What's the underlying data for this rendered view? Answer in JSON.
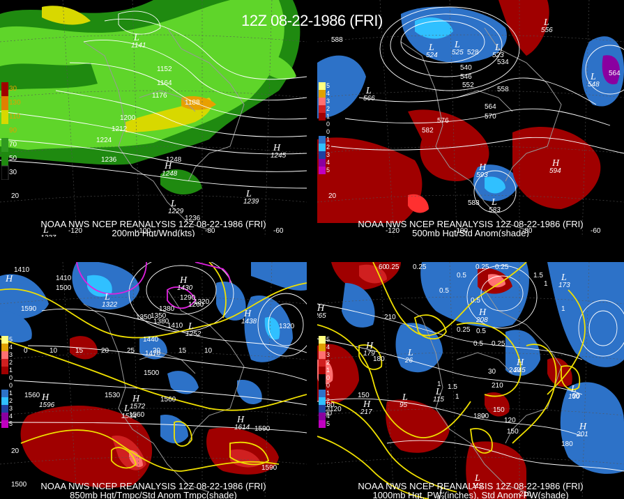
{
  "title": "12Z 08-22-1986 (FRI)",
  "colors": {
    "wind_green_light": "#5fd52a",
    "wind_green_dark": "#1f8a10",
    "wind_yellow": "#d8d800",
    "anom_red": "#a00000",
    "anom_red_light": "#ff3030",
    "anom_blue": "#2d72c8",
    "anom_cyan": "#30c0ff",
    "yellow_contour": "#f0e000",
    "magenta_contour": "#e020e0"
  },
  "panels": [
    {
      "caption_line1": "NOAA NWS NCEP REANALYSIS 12Z 08-22-1986 (FRI)",
      "caption_line2": "200mb Hgt/Wnd(kts)",
      "legend": [
        "30",
        "130",
        "110",
        "90",
        "70",
        "50",
        "30"
      ],
      "axis_labels": [
        "20",
        "-120",
        "-100",
        "-80",
        "-60"
      ],
      "contour_labels": [
        "1152",
        "1164",
        "1176",
        "1188",
        "1200",
        "1212",
        "1224",
        "1236",
        "1248",
        "1236"
      ],
      "highs_lows": [
        {
          "letter": "L",
          "value": "1141"
        },
        {
          "letter": "H",
          "value": "1245"
        },
        {
          "letter": "H",
          "value": "1248"
        },
        {
          "letter": "L",
          "value": "1239"
        },
        {
          "letter": "L",
          "value": "1229"
        },
        {
          "letter": "L",
          "value": "1237"
        }
      ]
    },
    {
      "caption_line1": "NOAA NWS NCEP REANALYSIS 12Z 08-22-1986 (FRI)",
      "caption_line2": "500mb Hgt/Std Anom(shade)",
      "legend": [
        "5",
        "4",
        "3",
        "2",
        "1",
        "0",
        "0",
        "1",
        "2",
        "3",
        "4",
        "5"
      ],
      "axis_labels": [
        "20",
        "-120",
        "-100",
        "-80",
        "-60"
      ],
      "contour_labels": [
        "588",
        "528",
        "540",
        "546",
        "552",
        "558",
        "564",
        "570",
        "576",
        "582",
        "588",
        "534",
        "564"
      ],
      "highs_lows": [
        {
          "letter": "L",
          "value": "524"
        },
        {
          "letter": "L",
          "value": "525"
        },
        {
          "letter": "L",
          "value": "523"
        },
        {
          "letter": "L",
          "value": "566"
        },
        {
          "letter": "L",
          "value": "556"
        },
        {
          "letter": "L",
          "value": "548"
        },
        {
          "letter": "H",
          "value": "593"
        },
        {
          "letter": "H",
          "value": "594"
        },
        {
          "letter": "L",
          "value": "583"
        }
      ]
    },
    {
      "caption_line1": "NOAA NWS NCEP REANALYSIS 12Z 08-22-1986 (FRI)",
      "caption_line2": "850mb Hgt/Tmpc/Std Anom Tmpc(shade)",
      "legend": [
        "5",
        "4",
        "3",
        "2",
        "1",
        "0",
        "0",
        "1",
        "2",
        "3",
        "4",
        "5"
      ],
      "axis_labels": [
        "20",
        "1500"
      ],
      "contour_labels": [
        "1410",
        "1410",
        "1500",
        "1590",
        "1320",
        "1350",
        "1380",
        "1410",
        "1440",
        "1470",
        "1500",
        "1530",
        "1560",
        "1560",
        "1590",
        "1590",
        "1560",
        "1290",
        "1260",
        "1320",
        "1380",
        "1350",
        "0",
        "10",
        "15",
        "20",
        "25",
        "20",
        "15",
        "10"
      ],
      "highs_lows": [
        {
          "letter": "H",
          "value": ""
        },
        {
          "letter": "L",
          "value": "1322"
        },
        {
          "letter": "H",
          "value": "1430"
        },
        {
          "letter": "H",
          "value": "1438"
        },
        {
          "letter": "L",
          "value": "1252"
        },
        {
          "letter": "H",
          "value": "1596"
        },
        {
          "letter": "H",
          "value": "1572"
        },
        {
          "letter": "L",
          "value": "1534"
        },
        {
          "letter": "H",
          "value": "1614"
        }
      ]
    },
    {
      "caption_line1": "NOAA NWS NCEP REANALYSIS 12Z 08-22-1986 (FRI)",
      "caption_line2": "1000mb Hgt, PW (inches), Std Anom PW(shade)",
      "legend": [
        "5",
        "4",
        "3",
        "2",
        "1",
        "0",
        "0",
        "1",
        "2",
        "3",
        "4",
        "5"
      ],
      "axis_labels": [
        "180"
      ],
      "contour_labels": [
        "60",
        "0.25",
        "0.25",
        "0.5",
        "0.25",
        "0.25",
        "0.5",
        "0.5",
        "0.25",
        "0.5",
        "1",
        "1.5",
        "1",
        "0.25",
        "0.5",
        "1",
        "1.5",
        "1",
        "210",
        "180",
        "150",
        "120",
        "90",
        "60",
        "30",
        "240",
        "210",
        "150",
        "120",
        "90",
        "180",
        "150",
        "180",
        "210"
      ],
      "highs_lows": [
        {
          "letter": "H",
          "value": "265"
        },
        {
          "letter": "L",
          "value": "173"
        },
        {
          "letter": "H",
          "value": "179"
        },
        {
          "letter": "L",
          "value": "26"
        },
        {
          "letter": "H",
          "value": "208"
        },
        {
          "letter": "H",
          "value": "245"
        },
        {
          "letter": "L",
          "value": "95"
        },
        {
          "letter": "L",
          "value": "115"
        },
        {
          "letter": "H",
          "value": "217"
        },
        {
          "letter": "L",
          "value": "130"
        },
        {
          "letter": "H",
          "value": "201"
        },
        {
          "letter": "L",
          "value": "112"
        },
        {
          "letter": "L",
          "value": "93"
        }
      ]
    }
  ]
}
